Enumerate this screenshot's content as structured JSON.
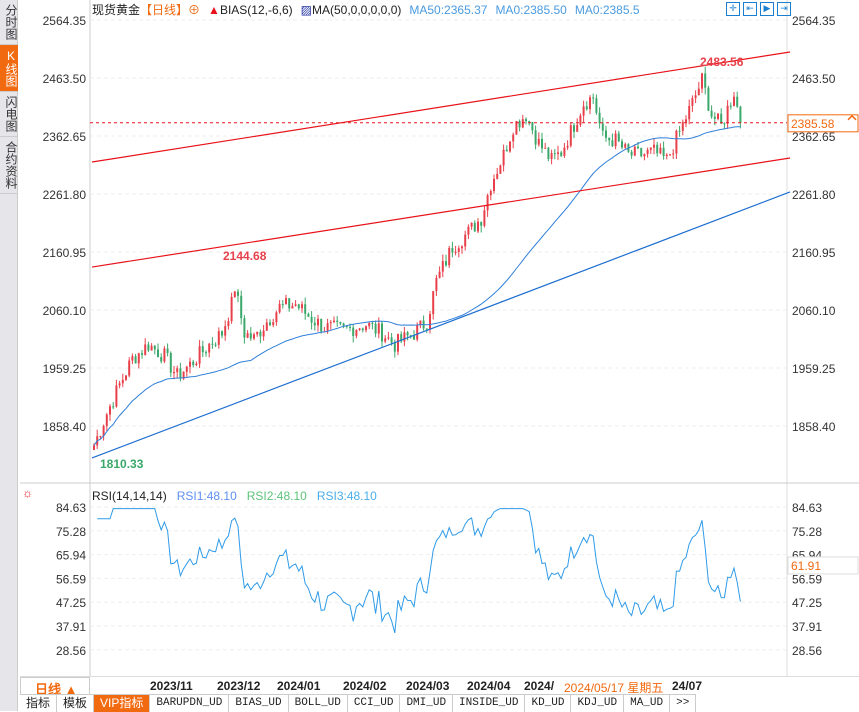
{
  "sidebar": {
    "items": [
      {
        "label": "分时图",
        "active": false
      },
      {
        "label": "K线图",
        "active": true
      },
      {
        "label": "闪电图",
        "active": false
      },
      {
        "label": "合约资料",
        "active": false
      }
    ]
  },
  "header": {
    "symbol": "现货黄金",
    "period": "【日线】",
    "bias": "BIAS(12,-6,6)",
    "ma": "MA(50,0,0,0,0,0)",
    "ma50": "MA50:2365.37",
    "ma0a": "MA0:2385.50",
    "ma0b": "MA0:2385.5"
  },
  "colors": {
    "up": "#e8404a",
    "down": "#3aa86a",
    "ma": "#2f7fd8",
    "accent": "#f26a10",
    "trend": "#e8121a",
    "blueTrend": "#1f6fd0"
  },
  "price_axis": {
    "labels": [
      "2564.35",
      "2463.50",
      "2362.65",
      "2261.80",
      "2160.95",
      "2060.10",
      "1959.25",
      "1858.40"
    ],
    "current": "2385.58"
  },
  "annotations": {
    "high": "2483.56",
    "mid_high": "2144.68",
    "low": "1810.33"
  },
  "rsi": {
    "title": "RSI(14,14,14)",
    "rsi1": "RSI1:48.10",
    "rsi2": "RSI2:48.10",
    "rsi3": "RSI3:48.10",
    "axis": [
      "84.63",
      "75.28",
      "65.94",
      "56.59",
      "47.25",
      "37.91",
      "28.56"
    ],
    "current": "61.91"
  },
  "time_axis": {
    "period_button": "日线 ▲",
    "labels": [
      "2023/11",
      "2023/12",
      "2024/01",
      "2024/02",
      "2024/03",
      "2024/04",
      "2024/",
      "24/07"
    ],
    "cursor": "2024/05/17 星期五"
  },
  "tabs": [
    "指标",
    "模板",
    "VIP指标",
    "BARUPDN_UD",
    "BIAS_UD",
    "BOLL_UD",
    "CCI_UD",
    "DMI_UD",
    "INSIDE_UD",
    "KD_UD",
    "KDJ_UD",
    "MA_UD",
    ">>"
  ],
  "chart_data": {
    "type": "candlestick",
    "price_path": [
      [
        0,
        1825
      ],
      [
        4,
        1880
      ],
      [
        8,
        1930
      ],
      [
        12,
        1975
      ],
      [
        17,
        2000
      ],
      [
        22,
        1980
      ],
      [
        26,
        1945
      ],
      [
        30,
        1965
      ],
      [
        36,
        2000
      ],
      [
        40,
        2020
      ],
      [
        43,
        2070
      ],
      [
        44,
        2100
      ],
      [
        47,
        2020
      ],
      [
        50,
        2010
      ],
      [
        54,
        2040
      ],
      [
        58,
        2065
      ],
      [
        63,
        2070
      ],
      [
        68,
        2045
      ],
      [
        72,
        2030
      ],
      [
        78,
        2025
      ],
      [
        85,
        2035
      ],
      [
        90,
        2020
      ],
      [
        94,
        2000
      ],
      [
        100,
        2020
      ],
      [
        104,
        2040
      ],
      [
        107,
        2110
      ],
      [
        112,
        2170
      ],
      [
        117,
        2195
      ],
      [
        121,
        2220
      ],
      [
        124,
        2280
      ],
      [
        128,
        2330
      ],
      [
        131,
        2380
      ],
      [
        135,
        2400
      ],
      [
        139,
        2350
      ],
      [
        143,
        2320
      ],
      [
        146,
        2335
      ],
      [
        149,
        2370
      ],
      [
        153,
        2420
      ],
      [
        156,
        2430
      ],
      [
        159,
        2360
      ],
      [
        163,
        2355
      ],
      [
        167,
        2330
      ],
      [
        171,
        2330
      ],
      [
        175,
        2335
      ],
      [
        179,
        2320
      ],
      [
        183,
        2370
      ],
      [
        187,
        2420
      ],
      [
        190,
        2460
      ],
      [
        193,
        2400
      ],
      [
        196,
        2380
      ],
      [
        200,
        2440
      ],
      [
        202,
        2385.58
      ]
    ],
    "trendlines": [
      {
        "name": "upper-channel",
        "from": [
          0,
          2317.4
        ],
        "to": [
          162,
          2508.7
        ]
      },
      {
        "name": "lower-channel",
        "from": [
          0,
          2134.8
        ],
        "to": [
          162,
          2324.4
        ]
      },
      {
        "name": "support",
        "from": [
          0,
          1802.8
        ],
        "to": [
          162,
          2265.3
        ]
      }
    ],
    "ylim": [
      1810,
      2564.35
    ],
    "rsi_ylim": [
      28.56,
      84.63
    ]
  }
}
